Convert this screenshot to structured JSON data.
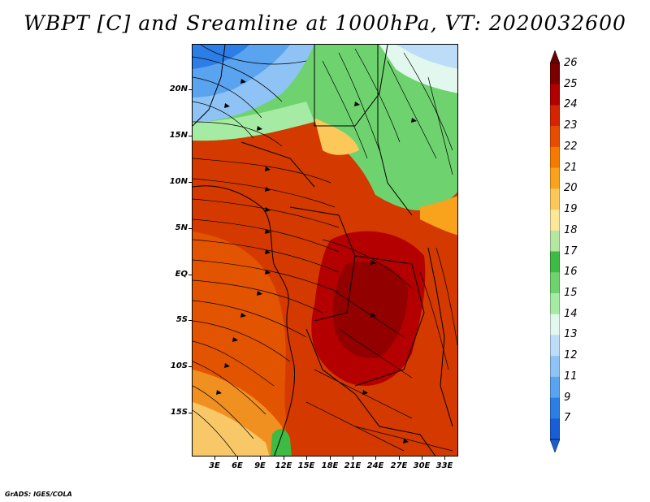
{
  "title": "WBPT [C] and Sreamline at 1000hPa, VT: 2020032600",
  "credit": "GrADS: IGES/COLA",
  "y_axis": {
    "labels": [
      "20N",
      "15N",
      "10N",
      "5N",
      "EQ",
      "5S",
      "10S",
      "15S"
    ]
  },
  "x_axis": {
    "labels": [
      "3E",
      "6E",
      "9E",
      "12E",
      "15E",
      "18E",
      "21E",
      "24E",
      "27E",
      "30E",
      "33E"
    ]
  },
  "colorbar": {
    "labels": [
      "26",
      "25",
      "24",
      "23",
      "22",
      "21",
      "20",
      "19",
      "18",
      "17",
      "16",
      "15",
      "14",
      "13",
      "12",
      "11",
      "9",
      "7"
    ],
    "colors": [
      "#7d0000",
      "#b20000",
      "#d42400",
      "#e84c00",
      "#f57a00",
      "#f9a21c",
      "#fcc85a",
      "#fde89a",
      "#b5e7a3",
      "#3dbb44",
      "#6ed36e",
      "#a6eba4",
      "#e2f7ee",
      "#bcdcf8",
      "#90c3f5",
      "#5aa3ef",
      "#2c7ee6",
      "#1a5ed6"
    ],
    "arrow_top_color": "#6a0000",
    "arrow_bottom_color": "#1a5ed6"
  },
  "map": {
    "frame_color": "#000000",
    "streamline_color": "#000000",
    "border_color": "#000000"
  }
}
